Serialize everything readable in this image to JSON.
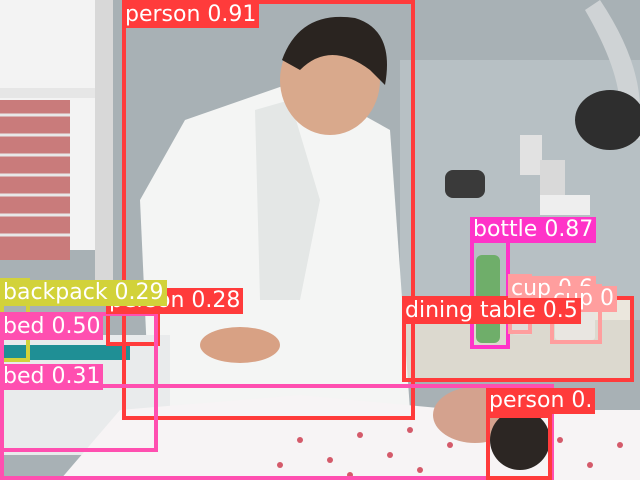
{
  "image": {
    "description_tags": [
      "hospital-room",
      "doctor",
      "patient-in-bed",
      "window",
      "medical-wall-equipment"
    ]
  },
  "colors": {
    "person": "#ff3b3b",
    "bottle": "#ff33c8",
    "dining_table": "#ff3b3b",
    "cup": "#ff9e9e",
    "backpack": "#d2d23a",
    "bed": "#ff4fb0",
    "label_text_light": "#ffffff",
    "label_text_dark": "#ffffff"
  },
  "detections": [
    {
      "label": "person 0.91"
    },
    {
      "label": "bottle 0.87"
    },
    {
      "label": "cup 0.6"
    },
    {
      "label": "cup 0"
    },
    {
      "label": "dining table 0.5"
    },
    {
      "label": "backpack 0.29"
    },
    {
      "label": "person 0.28"
    },
    {
      "label": "bed 0.50"
    },
    {
      "label": "bed 0.31"
    },
    {
      "label": "person 0."
    }
  ]
}
